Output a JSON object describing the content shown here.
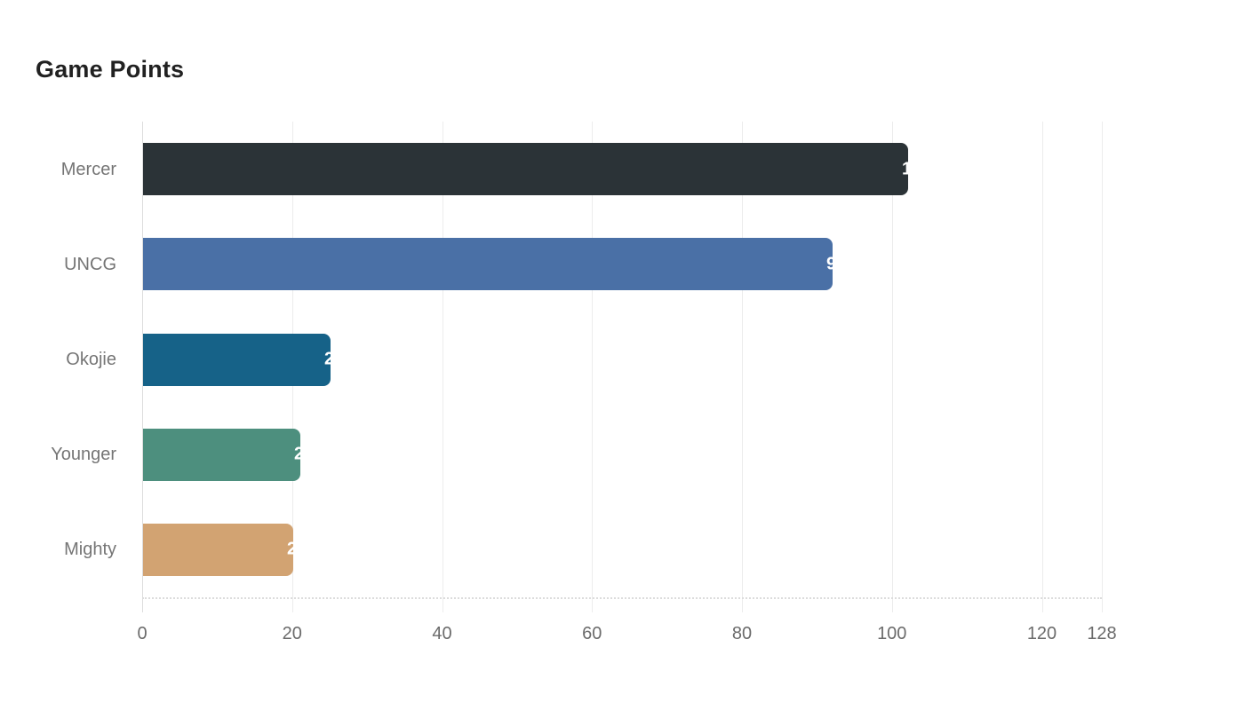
{
  "chart_data": {
    "type": "bar",
    "orientation": "horizontal",
    "title": "Game Points",
    "categories": [
      "Mercer",
      "UNCG",
      "Okojie",
      "Younger",
      "Mighty"
    ],
    "values": [
      102,
      92,
      25,
      21,
      20
    ],
    "bar_colors": [
      "#2b3337",
      "#4a70a6",
      "#166288",
      "#4d8f7e",
      "#d2a372"
    ],
    "value_label_color": "#ffffff",
    "value_labels_clipped": true,
    "xlabel": "",
    "ylabel": "",
    "xlim": [
      0,
      128
    ],
    "xticks": [
      0,
      20,
      40,
      60,
      80,
      100,
      120,
      128
    ],
    "grid": "vertical-gridlines",
    "legend": "none",
    "background_color": "#ffffff",
    "title_color": "#212121",
    "axis_label_color": "#757575"
  }
}
